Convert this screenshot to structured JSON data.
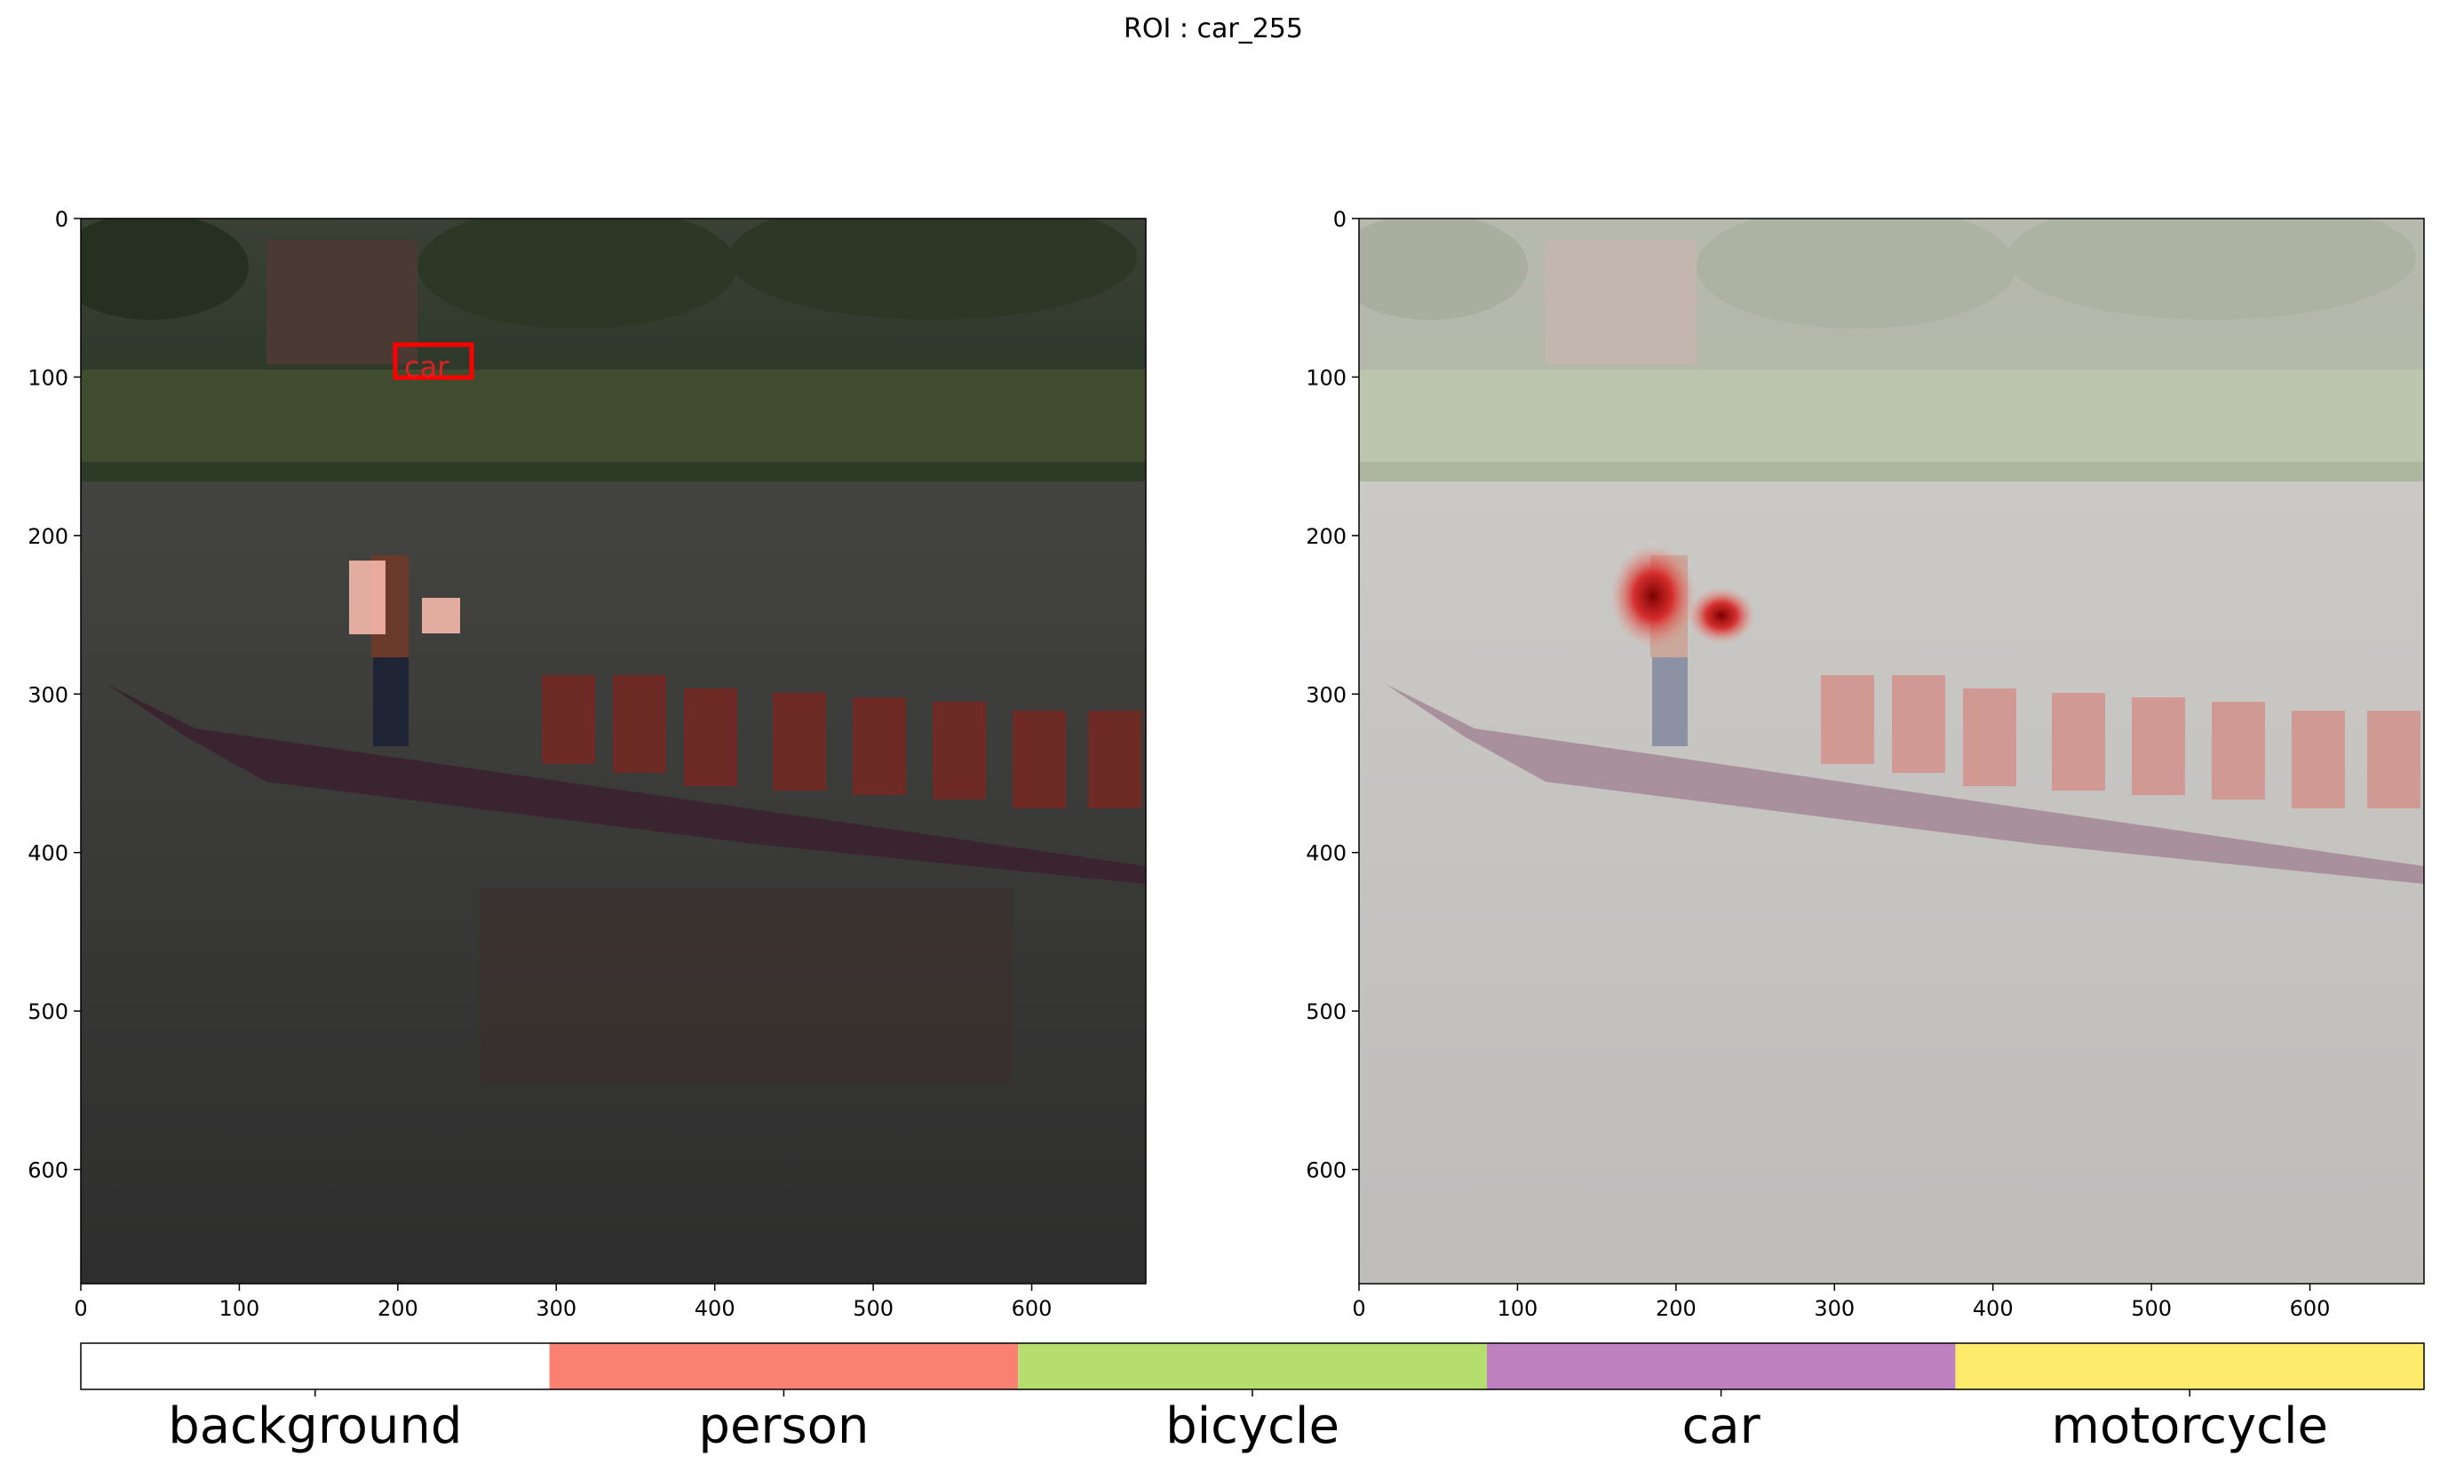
{
  "figure": {
    "suptitle": "ROI : car_255"
  },
  "chart_data": [
    {
      "type": "heatmap",
      "panel": "left",
      "description_visible": "photo of a dragon boat on a river, darkened, with a red ROI box labelled car and light-red activation patches",
      "xlim": [
        0,
        672
      ],
      "ylim": [
        672,
        0
      ],
      "xticks": [
        0,
        100,
        200,
        300,
        400,
        500,
        600
      ],
      "yticks": [
        0,
        100,
        200,
        300,
        400,
        500,
        600
      ],
      "roi_box": {
        "label": "car",
        "x0": 198,
        "y0": 79,
        "x1": 247,
        "y1": 100
      },
      "activation_patches": [
        {
          "x0": 168,
          "y0": 215,
          "x1": 191,
          "y1": 262
        },
        {
          "x0": 215,
          "y0": 239,
          "x1": 239,
          "y1": 262
        }
      ]
    },
    {
      "type": "heatmap",
      "panel": "right",
      "xlim": [
        0,
        672
      ],
      "ylim": [
        672,
        0
      ],
      "xticks": [
        0,
        100,
        200,
        300,
        400,
        500,
        600
      ],
      "yticks": [
        0,
        100,
        200,
        300,
        400,
        500,
        600
      ],
      "hotspots": [
        {
          "x": 185,
          "y": 238
        },
        {
          "x": 228,
          "y": 250
        }
      ]
    }
  ],
  "legend_bar": {
    "classes": [
      {
        "name": "background",
        "color": "#ffffff"
      },
      {
        "name": "person",
        "color": "#fa8072"
      },
      {
        "name": "bicycle",
        "color": "#b5de6e"
      },
      {
        "name": "car",
        "color": "#bf80bf"
      },
      {
        "name": "motorcycle",
        "color": "#ffeb6b"
      }
    ]
  }
}
